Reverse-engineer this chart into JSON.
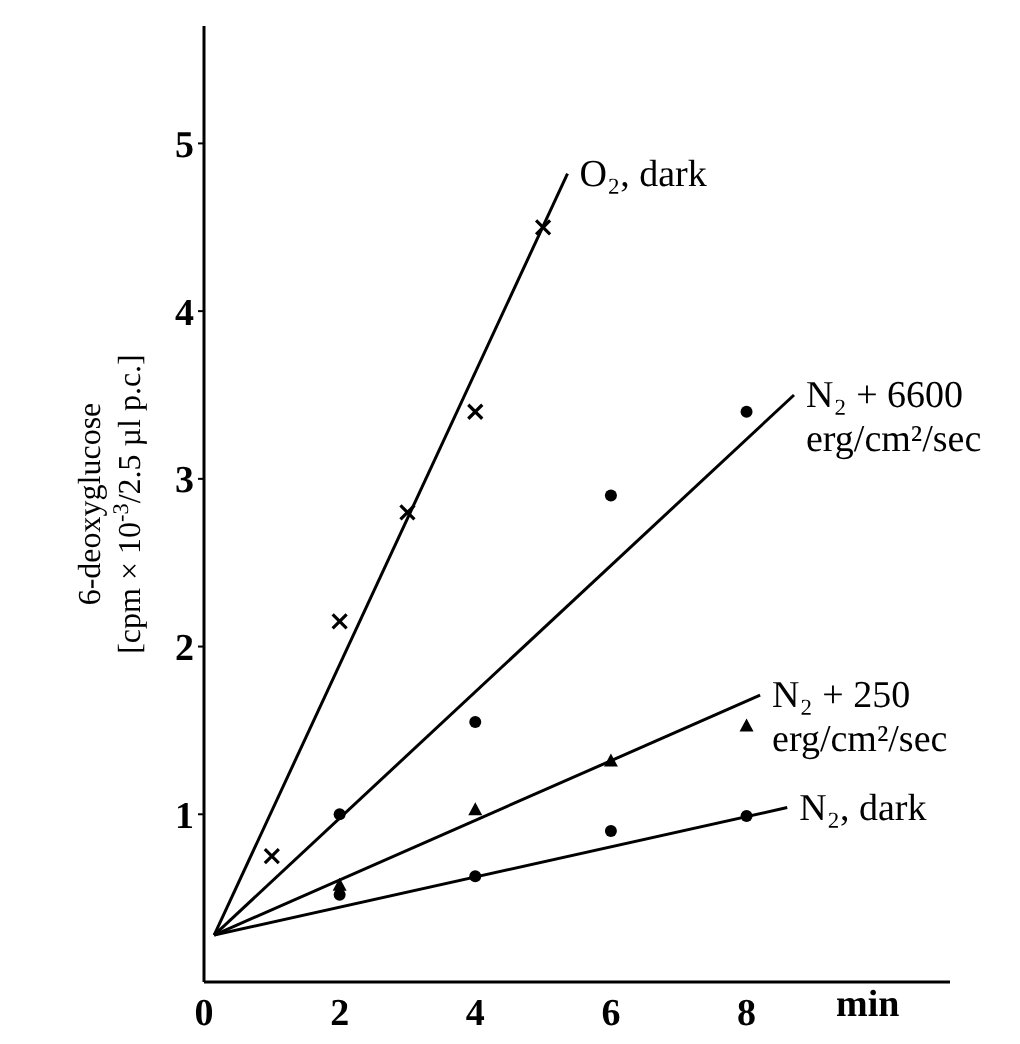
{
  "chart_data": {
    "type": "scatter",
    "xlabel": "min",
    "ylabel": "6-deoxyglucose [cpm × 10$^{-3}$/2.5 µl p.c.]",
    "xlim": [
      0,
      11
    ],
    "xticks": [
      0,
      2,
      4,
      6,
      8
    ],
    "ylim": [
      0,
      5.7
    ],
    "yticks": [
      1,
      2,
      3,
      4,
      5
    ],
    "grid": false,
    "legend": false,
    "series": [
      {
        "marker": "cross",
        "color": "#000000",
        "x": [
          1,
          2,
          3,
          4,
          5
        ],
        "values": [
          0.75,
          2.15,
          2.8,
          3.4,
          4.5
        ]
      },
      {
        "marker": "circle",
        "color": "#000000",
        "x": [
          2,
          4,
          6,
          8
        ],
        "values": [
          1.0,
          1.55,
          2.9,
          3.4
        ]
      },
      {
        "marker": "triangle",
        "color": "#000000",
        "x": [
          2,
          4,
          6,
          8
        ],
        "values": [
          0.58,
          1.03,
          1.32,
          1.53
        ]
      },
      {
        "marker": "circle",
        "color": "#000000",
        "x": [
          2,
          4,
          6,
          8
        ],
        "values": [
          0.52,
          0.63,
          0.9,
          0.99
        ]
      },
      {
        "type": "line",
        "name": "O₂, dark",
        "color": "#000000",
        "marker": "none",
        "x": [
          0.15,
          5.36
        ],
        "values": [
          0.28,
          4.82
        ]
      },
      {
        "type": "line",
        "name": "N₂ + 6600 erg/cm²/sec",
        "color": "#000000",
        "marker": "none",
        "x": [
          0.15,
          8.7
        ],
        "values": [
          0.28,
          3.5
        ]
      },
      {
        "type": "line",
        "name": "N₂ + 250 erg/cm²/sec",
        "color": "#000000",
        "marker": "none",
        "x": [
          0.15,
          8.2
        ],
        "values": [
          0.28,
          1.71
        ]
      },
      {
        "type": "line",
        "name": "N₂, dark",
        "color": "#000000",
        "marker": "none",
        "x": [
          0.15,
          8.6
        ],
        "values": [
          0.28,
          1.04
        ]
      }
    ]
  }
}
